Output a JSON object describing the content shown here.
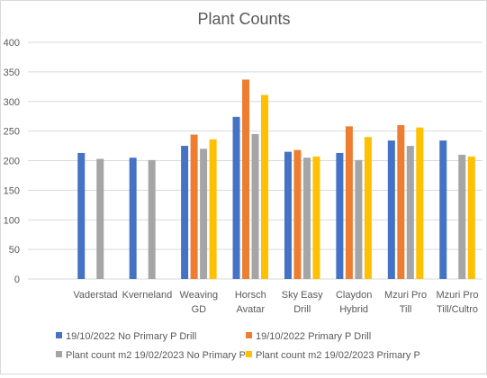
{
  "chart_data": {
    "type": "bar",
    "title": "Plant Counts",
    "xlabel": "",
    "ylabel": "",
    "ylim": [
      0,
      400
    ],
    "yticks": [
      0,
      50,
      100,
      150,
      200,
      250,
      300,
      350,
      400
    ],
    "grid": true,
    "legend_position": "bottom",
    "categories": [
      [
        "Vaderstad"
      ],
      [
        "Kverneland"
      ],
      [
        "Weaving",
        "GD"
      ],
      [
        "Horsch",
        "Avatar"
      ],
      [
        "Sky Easy",
        "Drill"
      ],
      [
        "Claydon",
        "Hybrid"
      ],
      [
        "Mzuri Pro",
        "Till"
      ],
      [
        "Mzuri Pro",
        "Till/Cultro"
      ]
    ],
    "series": [
      {
        "name": "19/10/2022 No Primary P  Drill",
        "color": "#4472c4",
        "values": [
          213,
          205,
          225,
          274,
          215,
          213,
          234,
          234
        ]
      },
      {
        "name": "19/10/2022 Primary P Drill",
        "color": "#ed7d31",
        "values": [
          null,
          null,
          244,
          337,
          218,
          258,
          260,
          null
        ]
      },
      {
        "name": "Plant count m2 19/02/2023 No Primary P",
        "color": "#a5a5a5",
        "values": [
          203,
          201,
          220,
          245,
          205,
          201,
          225,
          210
        ]
      },
      {
        "name": "Plant count m2 19/02/2023 Primary P",
        "color": "#ffc000",
        "values": [
          null,
          null,
          236,
          311,
          207,
          240,
          256,
          207
        ]
      }
    ]
  }
}
